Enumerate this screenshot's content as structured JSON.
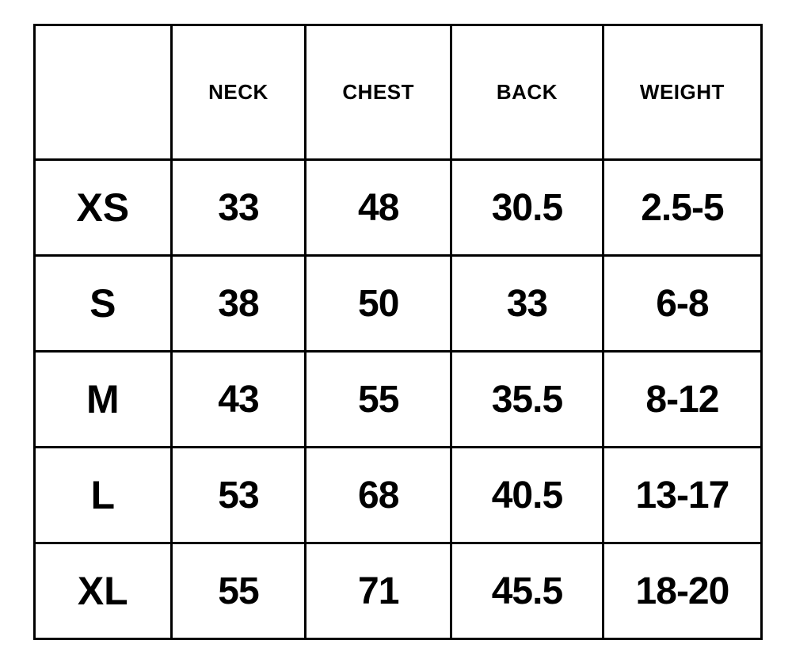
{
  "colors": {
    "background": "#ffffff",
    "border": "#000000",
    "text": "#000000"
  },
  "chart_data": {
    "type": "table",
    "title": "",
    "columns": [
      "",
      "NECK",
      "CHEST",
      "BACK",
      "WEIGHT"
    ],
    "rows": [
      {
        "label": "XS",
        "values": [
          "33",
          "48",
          "30.5",
          "2.5-5"
        ]
      },
      {
        "label": "S",
        "values": [
          "38",
          "50",
          "33",
          "6-8"
        ]
      },
      {
        "label": "M",
        "values": [
          "43",
          "55",
          "35.5",
          "8-12"
        ]
      },
      {
        "label": "L",
        "values": [
          "53",
          "68",
          "40.5",
          "13-17"
        ]
      },
      {
        "label": "XL",
        "values": [
          "55",
          "71",
          "45.5",
          "18-20"
        ]
      }
    ]
  }
}
